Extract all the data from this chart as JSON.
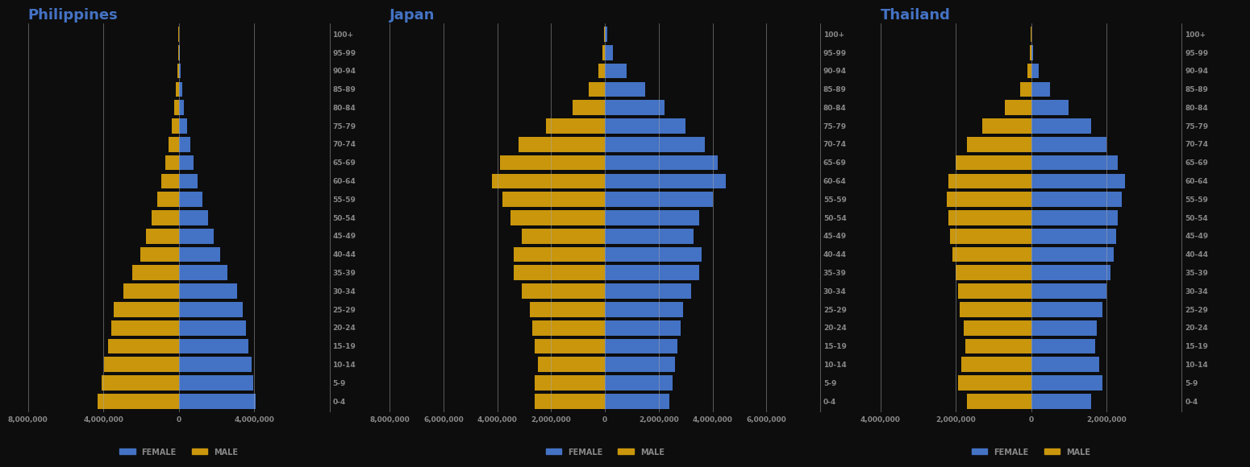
{
  "age_groups": [
    "0-4",
    "5-9",
    "10-14",
    "15-19",
    "20-24",
    "25-29",
    "30-34",
    "35-39",
    "40-44",
    "45-49",
    "50-54",
    "55-59",
    "60-64",
    "65-69",
    "70-74",
    "75-79",
    "80-84",
    "85-89",
    "90-94",
    "95-99",
    "100+"
  ],
  "background_color": "#0d0d0d",
  "bar_color_female": "#4472C4",
  "bar_color_male": "#C9960C",
  "title_color": "#4472C4",
  "tick_label_color": "#888888",
  "grid_color": "#aaaaaa",
  "philippines": {
    "title": "Philippines",
    "female": [
      4100000,
      3950000,
      3850000,
      3700000,
      3550000,
      3400000,
      3100000,
      2600000,
      2200000,
      1850000,
      1550000,
      1250000,
      1000000,
      780000,
      600000,
      440000,
      290000,
      190000,
      110000,
      55000,
      25000
    ],
    "male": [
      4300000,
      4100000,
      3950000,
      3750000,
      3600000,
      3450000,
      2950000,
      2450000,
      2050000,
      1750000,
      1450000,
      1150000,
      940000,
      720000,
      540000,
      380000,
      240000,
      150000,
      80000,
      38000,
      15000
    ],
    "xlim": 8000000,
    "xticks": [
      -8000000,
      -4000000,
      0,
      4000000
    ]
  },
  "japan": {
    "title": "Japan",
    "female": [
      2400000,
      2500000,
      2600000,
      2700000,
      2800000,
      2900000,
      3200000,
      3500000,
      3600000,
      3300000,
      3500000,
      4000000,
      4500000,
      4200000,
      3700000,
      3000000,
      2200000,
      1500000,
      800000,
      300000,
      80000
    ],
    "male": [
      2600000,
      2600000,
      2500000,
      2600000,
      2700000,
      2800000,
      3100000,
      3400000,
      3400000,
      3100000,
      3500000,
      3800000,
      4200000,
      3900000,
      3200000,
      2200000,
      1200000,
      600000,
      250000,
      100000,
      30000
    ],
    "xlim": 8000000,
    "xticks": [
      -8000000,
      -6000000,
      -4000000,
      -2000000,
      0,
      2000000,
      4000000,
      6000000
    ]
  },
  "thailand": {
    "title": "Thailand",
    "female": [
      1600000,
      1900000,
      1800000,
      1700000,
      1750000,
      1900000,
      2000000,
      2100000,
      2200000,
      2250000,
      2300000,
      2400000,
      2500000,
      2300000,
      2000000,
      1600000,
      1000000,
      500000,
      200000,
      60000,
      15000
    ],
    "male": [
      1700000,
      1950000,
      1850000,
      1750000,
      1800000,
      1900000,
      1950000,
      2000000,
      2100000,
      2150000,
      2200000,
      2250000,
      2200000,
      2000000,
      1700000,
      1300000,
      700000,
      300000,
      100000,
      30000,
      5000
    ],
    "xlim": 4000000,
    "xticks": [
      -4000000,
      -2000000,
      0,
      2000000
    ]
  }
}
